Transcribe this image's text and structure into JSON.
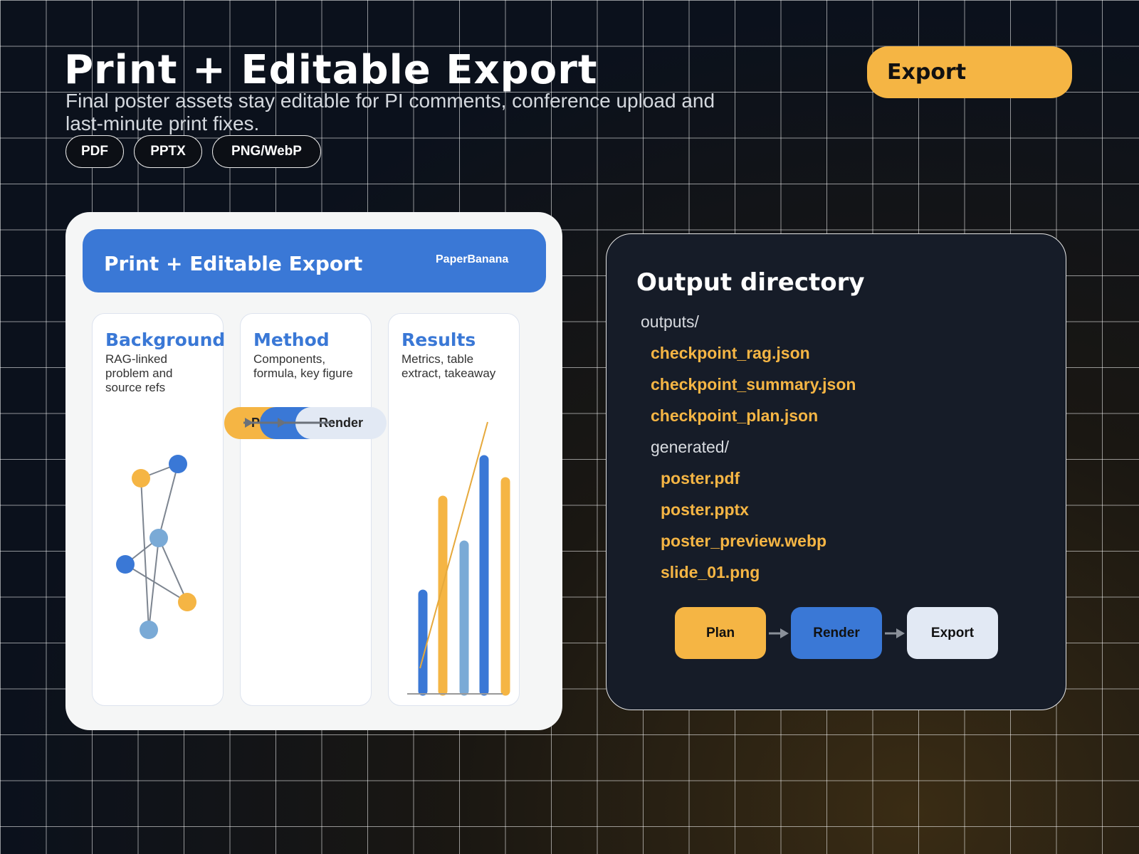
{
  "header": {
    "title": "Print + Editable Export",
    "subtitle": "Final poster assets stay editable for PI comments, conference upload and last-minute print fixes.",
    "formats": [
      "PDF",
      "PPTX",
      "PNG/WebP"
    ],
    "action": "Export"
  },
  "poster": {
    "title": "Print + Editable Export",
    "brand": "PaperBanana",
    "sections": [
      {
        "title": "Background",
        "text": "RAG-linked problem and source refs"
      },
      {
        "title": "Method",
        "text": "Components, formula, key figure"
      },
      {
        "title": "Results",
        "text": "Metrics, table extract, takeaway"
      }
    ],
    "mini_flow": [
      "Plan",
      "Render"
    ]
  },
  "output": {
    "title": "Output directory",
    "root": "outputs/",
    "checkpoints": [
      "checkpoint_rag.json",
      "checkpoint_summary.json",
      "checkpoint_plan.json"
    ],
    "folder": "generated/",
    "files": [
      "poster.pdf",
      "poster.pptx",
      "poster_preview.webp",
      "slide_01.png"
    ],
    "steps": [
      "Plan",
      "Render",
      "Export"
    ]
  }
}
